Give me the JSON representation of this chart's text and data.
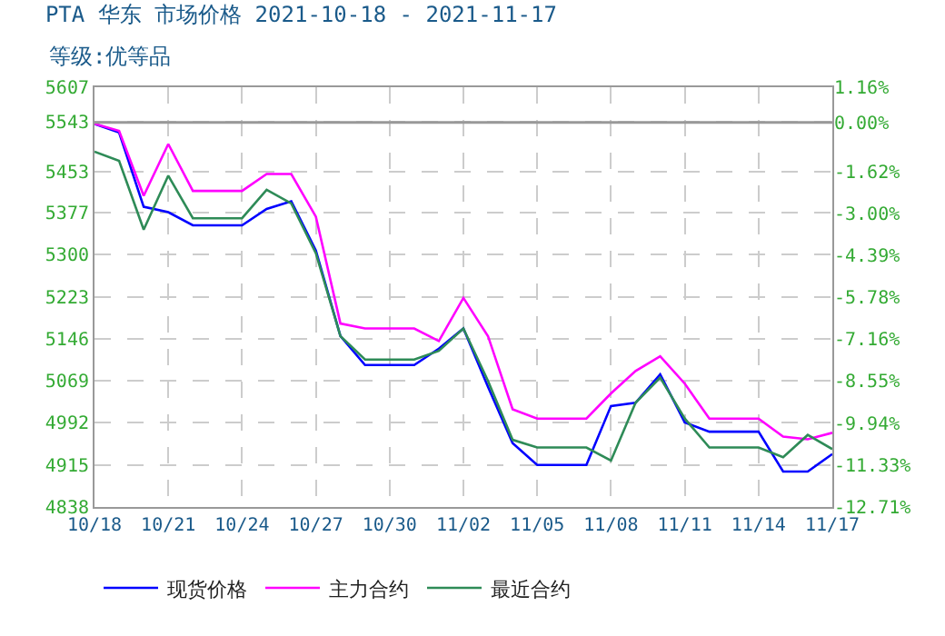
{
  "chart_data": {
    "type": "line",
    "title": "PTA 华东 市场价格 2021-10-18 - 2021-11-17",
    "subtitle": "等级:优等品",
    "x": [
      "2021-10-18",
      "2021-10-19",
      "2021-10-20",
      "2021-10-21",
      "2021-10-22",
      "2021-10-23",
      "2021-10-24",
      "2021-10-25",
      "2021-10-26",
      "2021-10-27",
      "2021-10-28",
      "2021-10-29",
      "2021-10-30",
      "2021-10-31",
      "2021-11-01",
      "2021-11-02",
      "2021-11-03",
      "2021-11-04",
      "2021-11-05",
      "2021-11-06",
      "2021-11-07",
      "2021-11-08",
      "2021-11-09",
      "2021-11-10",
      "2021-11-11",
      "2021-11-12",
      "2021-11-13",
      "2021-11-14",
      "2021-11-15",
      "2021-11-16",
      "2021-11-17"
    ],
    "series": [
      {
        "name": "现货价格",
        "color": "#0000ff",
        "values": [
          5540,
          5524,
          5388,
          5378,
          5354,
          5354,
          5354,
          5384,
          5398,
          5308,
          5151,
          5098,
          5098,
          5098,
          5128,
          5165,
          5058,
          4955,
          4915,
          4915,
          4915,
          5023,
          5029,
          5081,
          4993,
          4976,
          4976,
          4976,
          4903,
          4903,
          4935
        ]
      },
      {
        "name": "主力合约",
        "color": "#ff00ff",
        "values": [
          5540,
          5527,
          5408,
          5503,
          5417,
          5417,
          5417,
          5448,
          5448,
          5370,
          5174,
          5165,
          5165,
          5165,
          5142,
          5221,
          5151,
          5017,
          5000,
          5000,
          5000,
          5046,
          5087,
          5114,
          5064,
          5000,
          5000,
          5000,
          4967,
          4962,
          4974
        ]
      },
      {
        "name": "最近合约",
        "color": "#2e8b57",
        "values": [
          5489,
          5472,
          5346,
          5445,
          5367,
          5367,
          5367,
          5419,
          5394,
          5303,
          5151,
          5108,
          5108,
          5108,
          5124,
          5165,
          5069,
          4961,
          4947,
          4947,
          4947,
          4923,
          5029,
          5075,
          5000,
          4947,
          4947,
          4947,
          4929,
          4970,
          4944
        ]
      }
    ],
    "xlim": [
      "2021-10-18",
      "2021-11-17"
    ],
    "xticks": [
      {
        "value": "2021-10-18",
        "label": "10/18"
      },
      {
        "value": "2021-10-21",
        "label": "10/21"
      },
      {
        "value": "2021-10-24",
        "label": "10/24"
      },
      {
        "value": "2021-10-27",
        "label": "10/27"
      },
      {
        "value": "2021-10-30",
        "label": "10/30"
      },
      {
        "value": "2021-11-02",
        "label": "11/02"
      },
      {
        "value": "2021-11-05",
        "label": "11/05"
      },
      {
        "value": "2021-11-08",
        "label": "11/08"
      },
      {
        "value": "2021-11-11",
        "label": "11/11"
      },
      {
        "value": "2021-11-14",
        "label": "11/14"
      },
      {
        "value": "2021-11-17",
        "label": "11/17"
      }
    ],
    "ylim": [
      4838,
      5607
    ],
    "yticks": [
      4838,
      4915,
      4992,
      5069,
      5146,
      5223,
      5300,
      5377,
      5453,
      5543,
      5607
    ],
    "y2lim": [
      -12.71,
      1.16
    ],
    "y2ticks": [
      {
        "value": -12.71,
        "label": "-12.71%"
      },
      {
        "value": -11.33,
        "label": "-11.33%"
      },
      {
        "value": -9.94,
        "label": "-9.94%"
      },
      {
        "value": -8.55,
        "label": "-8.55%"
      },
      {
        "value": -7.16,
        "label": "-7.16%"
      },
      {
        "value": -5.78,
        "label": "-5.78%"
      },
      {
        "value": -4.39,
        "label": "-4.39%"
      },
      {
        "value": -3.0,
        "label": "-3.00%"
      },
      {
        "value": -1.62,
        "label": "-1.62%"
      },
      {
        "value": 0,
        "label": "0.00%"
      },
      {
        "value": 1.16,
        "label": "1.16%"
      }
    ],
    "ref_lines": [
      {
        "axis": "y2",
        "value": 0,
        "color": "#999999"
      }
    ],
    "grid": true,
    "legend": "bottom",
    "marker": "none",
    "line_style": "solid"
  }
}
